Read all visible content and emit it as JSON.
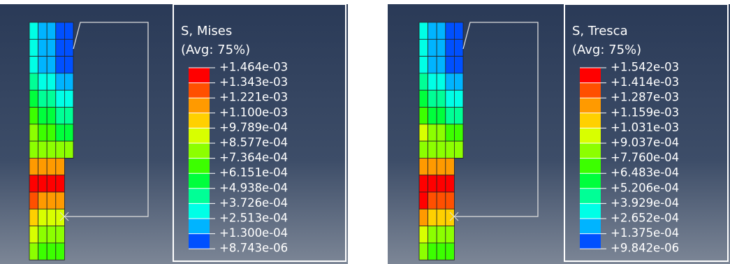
{
  "panels": [
    {
      "legend": {
        "title": "S, Mises",
        "subtitle": "(Avg: 75%)",
        "labels": [
          "+1.464e-03",
          "+1.343e-03",
          "+1.221e-03",
          "+1.100e-03",
          "+9.789e-04",
          "+8.577e-04",
          "+7.364e-04",
          "+6.151e-04",
          "+4.938e-04",
          "+3.726e-04",
          "+2.513e-04",
          "+1.300e-04",
          "+8.743e-06"
        ]
      }
    },
    {
      "legend": {
        "title": "S, Tresca",
        "subtitle": "(Avg: 75%)",
        "labels": [
          "+1.542e-03",
          "+1.414e-03",
          "+1.287e-03",
          "+1.159e-03",
          "+1.031e-03",
          "+9.037e-04",
          "+7.760e-04",
          "+6.483e-04",
          "+5.206e-04",
          "+3.929e-04",
          "+2.652e-04",
          "+1.375e-04",
          "+9.842e-06"
        ]
      }
    }
  ]
}
